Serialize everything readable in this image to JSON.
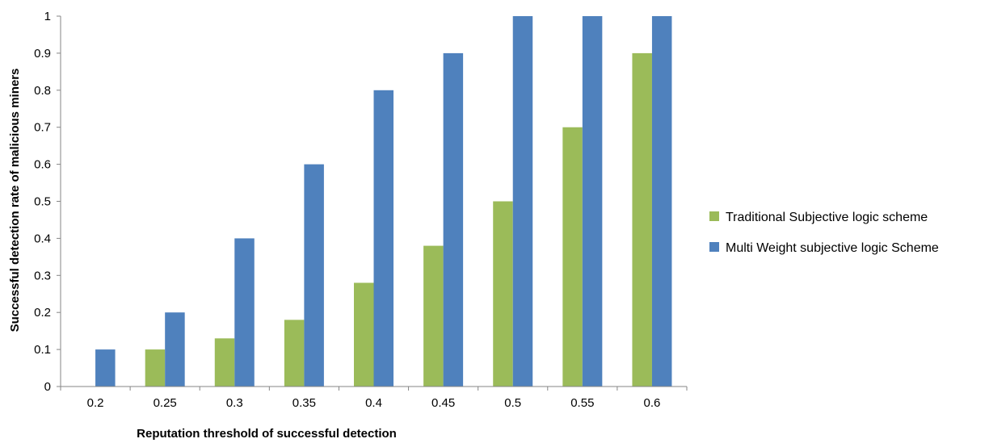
{
  "chart_data": {
    "type": "bar",
    "title": "",
    "xlabel": "Reputation threshold of successful detection",
    "ylabel": "Successful detection rate of malicious miners",
    "categories": [
      "0.2",
      "0.25",
      "0.3",
      "0.35",
      "0.4",
      "0.45",
      "0.5",
      "0.55",
      "0.6"
    ],
    "yticks": [
      "0",
      "0.1",
      "0.2",
      "0.3",
      "0.4",
      "0.5",
      "0.6",
      "0.7",
      "0.8",
      "0.9",
      "1"
    ],
    "ylim": [
      0,
      1
    ],
    "grid": false,
    "legend_position": "right",
    "series": [
      {
        "name": "Traditional Subjective logic scheme",
        "color": "#9bbb59",
        "values": [
          0,
          0.1,
          0.13,
          0.18,
          0.28,
          0.38,
          0.5,
          0.7,
          0.9
        ]
      },
      {
        "name": "Multi Weight subjective logic Scheme",
        "color": "#4f81bd",
        "values": [
          0.1,
          0.2,
          0.4,
          0.6,
          0.8,
          0.9,
          1.0,
          1.0,
          1.0
        ]
      }
    ]
  }
}
